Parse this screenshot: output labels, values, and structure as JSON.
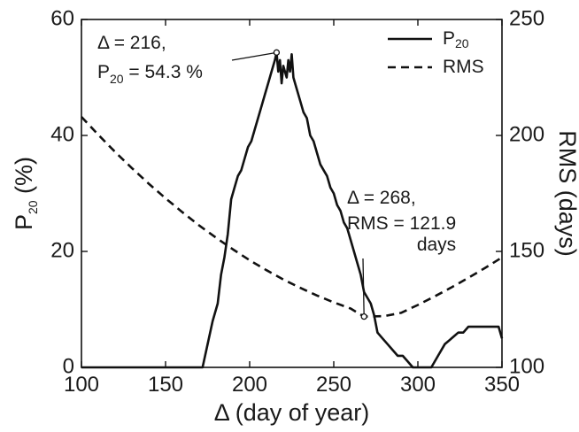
{
  "chart_data": {
    "type": "line",
    "xlabel": "Δ (day of year)",
    "ylabel_left": {
      "base": "P",
      "sub": "20",
      "rest": " (%)"
    },
    "ylabel_right": "RMS (days)",
    "xlim": [
      100,
      350
    ],
    "ylim_left": [
      0,
      60
    ],
    "ylim_right": [
      100,
      250
    ],
    "xticks": [
      100,
      150,
      200,
      250,
      300,
      350
    ],
    "yticks_left": [
      0,
      20,
      40,
      60
    ],
    "yticks_right": [
      100,
      150,
      200,
      250
    ],
    "grid": false,
    "legend_position": "top-right",
    "legend": [
      {
        "base": "P",
        "sub": "20",
        "style": "solid"
      },
      {
        "base": "RMS",
        "sub": "",
        "style": "dashed"
      }
    ],
    "series": [
      {
        "name": "P20",
        "axis": "left",
        "style": "solid",
        "x": [
          100,
          172,
          175,
          178,
          181,
          183,
          185,
          187,
          189,
          191,
          193,
          195,
          197,
          199,
          201,
          203,
          205,
          207,
          209,
          211,
          213,
          215,
          216,
          217,
          218,
          219,
          220,
          222,
          223,
          224,
          225,
          226,
          227,
          228,
          230,
          232,
          234,
          236,
          238,
          240,
          242,
          244,
          246,
          248,
          250,
          252,
          254,
          256,
          258,
          260,
          262,
          264,
          266,
          268,
          270,
          272,
          274,
          276,
          279,
          282,
          285,
          288,
          291,
          294,
          297,
          300,
          302,
          305,
          308,
          312,
          316,
          320,
          324,
          327,
          330,
          335,
          340,
          345,
          348,
          350
        ],
        "y": [
          0,
          0,
          4,
          8,
          11,
          16,
          19,
          23,
          29,
          31,
          33,
          34,
          36,
          38,
          39,
          41,
          43,
          45,
          47,
          49,
          51,
          53,
          54.3,
          51,
          53,
          49,
          52,
          50,
          53,
          51,
          54,
          50,
          49,
          48,
          46,
          44,
          43,
          40,
          39,
          37,
          35,
          34,
          33,
          31,
          30,
          28,
          27,
          25,
          24,
          22,
          20,
          18,
          16,
          13,
          12,
          11,
          9,
          6,
          5,
          4,
          3,
          2,
          2,
          1,
          0,
          0,
          0,
          0,
          0,
          2,
          4,
          5,
          6,
          6,
          7,
          7,
          7,
          7,
          7,
          5
        ]
      },
      {
        "name": "RMS",
        "axis": "right",
        "style": "dashed",
        "x": [
          100,
          110,
          120,
          130,
          140,
          150,
          160,
          170,
          180,
          190,
          200,
          210,
          220,
          230,
          240,
          250,
          260,
          268,
          280,
          290,
          300,
          310,
          320,
          330,
          340,
          350
        ],
        "y": [
          208,
          200.3,
          192.9,
          185.9,
          179.2,
          172.9,
          166.9,
          161.2,
          155.9,
          150.9,
          146.2,
          141.9,
          137.9,
          134.3,
          131,
          128,
          125.4,
          121.9,
          122.1,
          123.5,
          126.9,
          130.6,
          134.5,
          138.6,
          142.9,
          147.4
        ]
      }
    ],
    "annotations": [
      {
        "series": "P20",
        "x": 216,
        "y": 54.3,
        "line1": "Δ = 216,",
        "line2_base": "P",
        "line2_sub": "20",
        "line2_rest": " = 54.3 %"
      },
      {
        "series": "RMS",
        "x": 268,
        "y": 121.9,
        "line1": "Δ = 268,",
        "line2": "RMS = 121.9",
        "line3": "days"
      }
    ]
  }
}
